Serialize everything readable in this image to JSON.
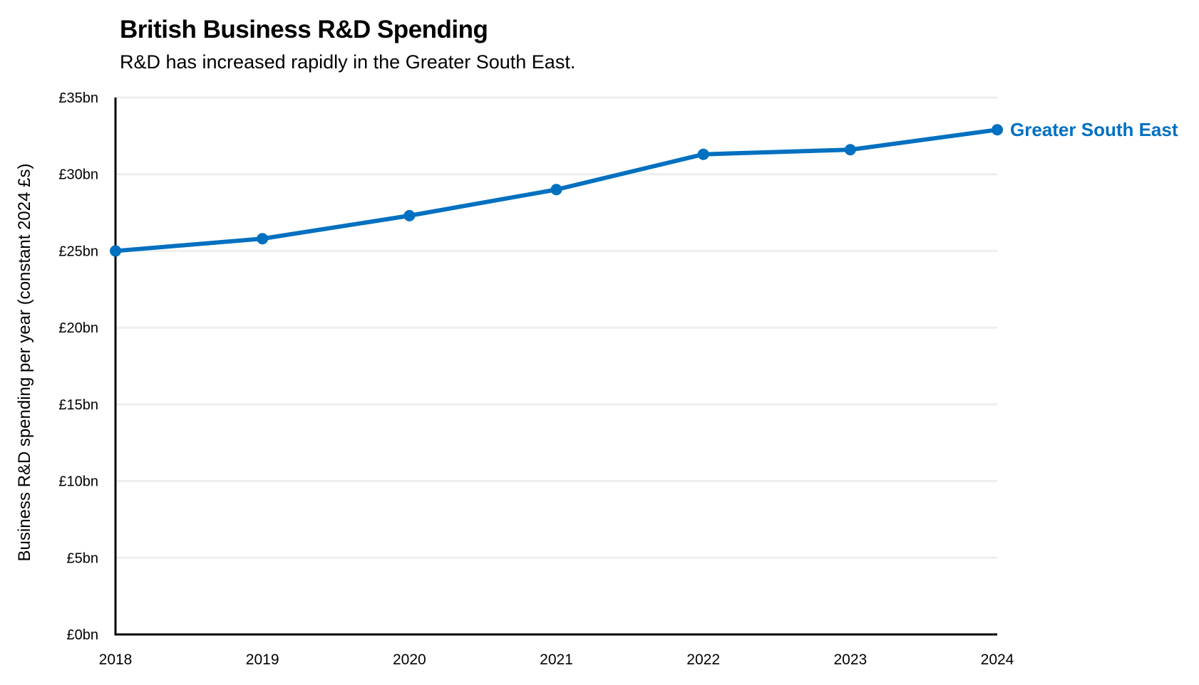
{
  "header": {
    "title": "British Business R&D Spending",
    "subtitle": "R&D has increased rapidly in the Greater South East."
  },
  "colors": {
    "series": "#0070C0",
    "axis": "#000000",
    "grid": "#EEEEEE"
  },
  "chart_data": {
    "type": "line",
    "title": "British Business R&D Spending",
    "subtitle": "R&D has increased rapidly in the Greater South East.",
    "xlabel": "",
    "ylabel": "Business R&D spending per year (constant 2024 £s)",
    "x": [
      2018,
      2019,
      2020,
      2021,
      2022,
      2023,
      2024
    ],
    "x_tick_labels": [
      "2018",
      "2019",
      "2020",
      "2021",
      "2022",
      "2023",
      "2024"
    ],
    "ylim": [
      0,
      35
    ],
    "y_ticks": [
      0,
      5,
      10,
      15,
      20,
      25,
      30,
      35
    ],
    "y_tick_labels": [
      "£0bn",
      "£5bn",
      "£10bn",
      "£15bn",
      "£20bn",
      "£25bn",
      "£30bn",
      "£35bn"
    ],
    "grid": true,
    "legend": "direct label at end of line (right)",
    "series": [
      {
        "name": "Greater South East",
        "values": [
          25.0,
          25.8,
          27.3,
          29.0,
          31.3,
          31.6,
          32.9
        ]
      }
    ]
  }
}
